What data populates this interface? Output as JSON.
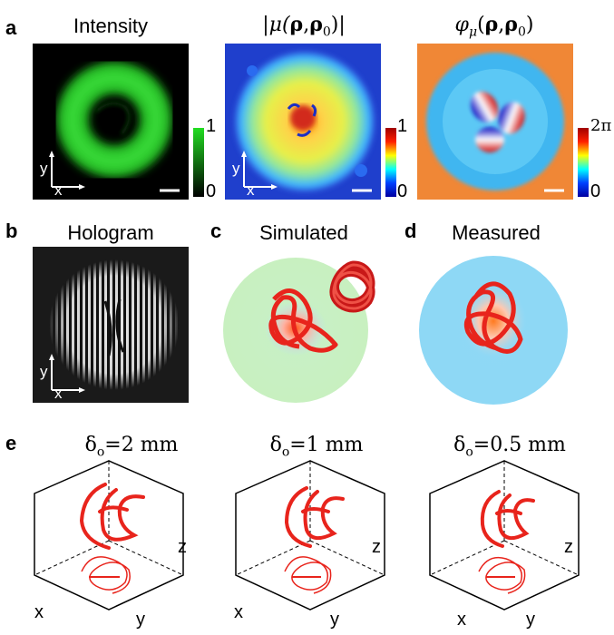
{
  "panel_a": {
    "label": "a",
    "intensity": {
      "title": "Intensity",
      "cbar_max": "1",
      "cbar_min": "0",
      "axis_x": "x",
      "axis_y": "y"
    },
    "abs_mu": {
      "title_parts": [
        "|μ(",
        "ρ",
        ",",
        "ρ",
        "0",
        ")|"
      ],
      "cbar_max": "1",
      "cbar_min": "0",
      "axis_x": "x",
      "axis_y": "y"
    },
    "phase_mu": {
      "title_parts": [
        "φ",
        "μ",
        "(",
        "ρ",
        ",",
        "ρ",
        "0",
        ")"
      ],
      "cbar_max": "2π",
      "cbar_min": "0"
    }
  },
  "panel_b": {
    "label": "b",
    "title": "Hologram",
    "axis_x": "x",
    "axis_y": "y"
  },
  "panel_c": {
    "label": "c",
    "title": "Simulated"
  },
  "panel_d": {
    "label": "d",
    "title": "Measured"
  },
  "panel_e": {
    "label": "e",
    "plots": [
      {
        "title_parts": [
          "δ",
          "o",
          "=2 mm"
        ],
        "x": "x",
        "y": "y",
        "z": "z"
      },
      {
        "title_parts": [
          "δ",
          "o",
          "=1 mm"
        ],
        "x": "x",
        "y": "y",
        "z": "z"
      },
      {
        "title_parts": [
          "δ",
          "o",
          "=0.5 mm"
        ],
        "x": "x",
        "y": "y",
        "z": "z"
      }
    ]
  },
  "colors": {
    "knot_red": "#e8241c",
    "intensity_green": "#22cc22",
    "jet_low": "#0000a0",
    "jet_high": "#a00000"
  }
}
